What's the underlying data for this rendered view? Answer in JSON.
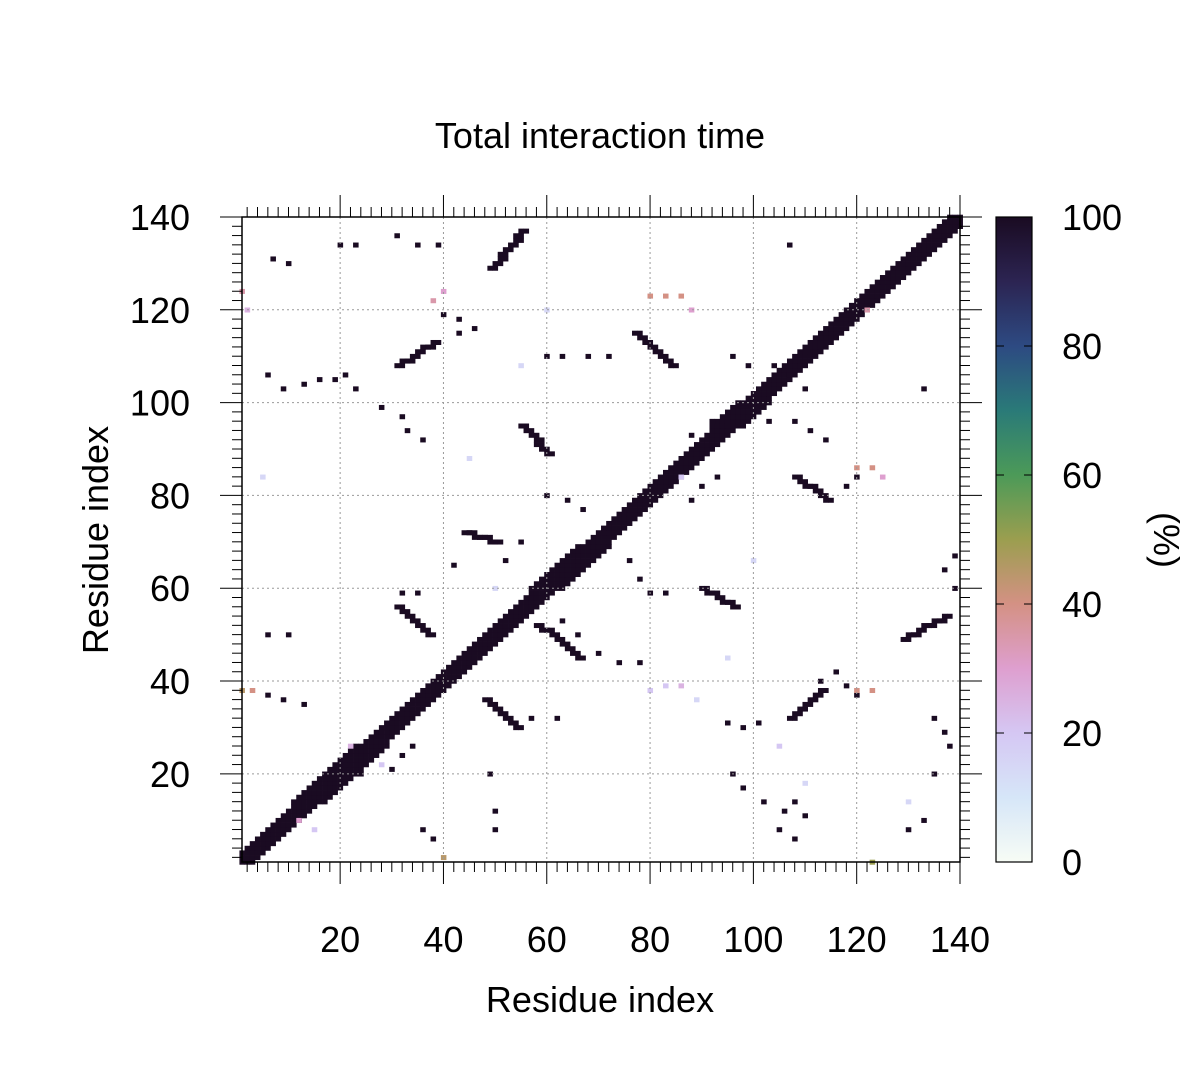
{
  "chart_data": {
    "type": "heatmap",
    "title": "Total interaction time",
    "xlabel": "Residue index",
    "ylabel": "Residue index",
    "xlim": [
      1,
      140
    ],
    "ylim": [
      1,
      140
    ],
    "x_ticks": [
      20,
      40,
      60,
      80,
      100,
      120,
      140
    ],
    "y_ticks": [
      20,
      40,
      60,
      80,
      100,
      120,
      140
    ],
    "grid": true,
    "colorbar": {
      "label": "(%)",
      "min": 0,
      "max": 100,
      "ticks": [
        0,
        20,
        40,
        60,
        80,
        100
      ],
      "colors": [
        "#f7fcf5",
        "#d6e6f8",
        "#d5c7f3",
        "#de9fcf",
        "#d49184",
        "#9b9e4f",
        "#4c9a58",
        "#2a7a78",
        "#2d4a82",
        "#2c2452",
        "#1a0b22"
      ]
    },
    "diagonal": {
      "from": 1,
      "to": 140,
      "value": 100
    },
    "contact_segments": [
      {
        "x1": 49,
        "y1": 129,
        "x2": 55,
        "y2": 137,
        "value": 100
      },
      {
        "x1": 31,
        "y1": 108,
        "x2": 38,
        "y2": 113,
        "value": 100
      },
      {
        "x1": 77,
        "y1": 115,
        "x2": 84,
        "y2": 108,
        "value": 100
      },
      {
        "x1": 55,
        "y1": 95,
        "x2": 60,
        "y2": 89,
        "value": 100
      },
      {
        "x1": 108,
        "y1": 84,
        "x2": 114,
        "y2": 79,
        "value": 100
      },
      {
        "x1": 90,
        "y1": 60,
        "x2": 96,
        "y2": 56,
        "value": 100
      },
      {
        "x1": 31,
        "y1": 56,
        "x2": 37,
        "y2": 50,
        "value": 100
      },
      {
        "x1": 48,
        "y1": 36,
        "x2": 54,
        "y2": 30,
        "value": 100
      },
      {
        "x1": 107,
        "y1": 32,
        "x2": 113,
        "y2": 38,
        "value": 100
      },
      {
        "x1": 129,
        "y1": 49,
        "x2": 137,
        "y2": 54,
        "value": 100
      },
      {
        "x1": 44,
        "y1": 72,
        "x2": 50,
        "y2": 70,
        "value": 100
      },
      {
        "x1": 58,
        "y1": 52,
        "x2": 62,
        "y2": 49,
        "value": 100
      },
      {
        "x1": 63,
        "y1": 48,
        "x2": 66,
        "y2": 45,
        "value": 100
      }
    ],
    "contact_dots": [
      {
        "x": 20,
        "y": 134,
        "value": 100
      },
      {
        "x": 23,
        "y": 134,
        "value": 100
      },
      {
        "x": 31,
        "y": 136,
        "value": 100
      },
      {
        "x": 35,
        "y": 134,
        "value": 100
      },
      {
        "x": 39,
        "y": 134,
        "value": 100
      },
      {
        "x": 7,
        "y": 131,
        "value": 100
      },
      {
        "x": 10,
        "y": 130,
        "value": 100
      },
      {
        "x": 107,
        "y": 134,
        "value": 100
      },
      {
        "x": 6,
        "y": 106,
        "value": 100
      },
      {
        "x": 9,
        "y": 103,
        "value": 100
      },
      {
        "x": 13,
        "y": 104,
        "value": 100
      },
      {
        "x": 16,
        "y": 105,
        "value": 100
      },
      {
        "x": 19,
        "y": 105,
        "value": 100
      },
      {
        "x": 21,
        "y": 106,
        "value": 100
      },
      {
        "x": 23,
        "y": 103,
        "value": 100
      },
      {
        "x": 40,
        "y": 119,
        "value": 100
      },
      {
        "x": 43,
        "y": 118,
        "value": 100
      },
      {
        "x": 46,
        "y": 116,
        "value": 100
      },
      {
        "x": 43,
        "y": 115,
        "value": 100
      },
      {
        "x": 60,
        "y": 110,
        "value": 100
      },
      {
        "x": 63,
        "y": 110,
        "value": 100
      },
      {
        "x": 68,
        "y": 110,
        "value": 100
      },
      {
        "x": 72,
        "y": 110,
        "value": 100
      },
      {
        "x": 96,
        "y": 110,
        "value": 100
      },
      {
        "x": 99,
        "y": 108,
        "value": 100
      },
      {
        "x": 104,
        "y": 108,
        "value": 100
      },
      {
        "x": 107,
        "y": 106,
        "value": 100
      },
      {
        "x": 110,
        "y": 103,
        "value": 100
      },
      {
        "x": 28,
        "y": 99,
        "value": 100
      },
      {
        "x": 32,
        "y": 97,
        "value": 100
      },
      {
        "x": 33,
        "y": 94,
        "value": 100
      },
      {
        "x": 36,
        "y": 92,
        "value": 100
      },
      {
        "x": 60,
        "y": 80,
        "value": 100
      },
      {
        "x": 64,
        "y": 79,
        "value": 100
      },
      {
        "x": 67,
        "y": 77,
        "value": 100
      },
      {
        "x": 42,
        "y": 65,
        "value": 100
      },
      {
        "x": 55,
        "y": 70,
        "value": 100
      },
      {
        "x": 52,
        "y": 66,
        "value": 100
      },
      {
        "x": 32,
        "y": 59,
        "value": 100
      },
      {
        "x": 35,
        "y": 59,
        "value": 100
      },
      {
        "x": 80,
        "y": 59,
        "value": 100
      },
      {
        "x": 83,
        "y": 59,
        "value": 100
      },
      {
        "x": 63,
        "y": 53,
        "value": 100
      },
      {
        "x": 66,
        "y": 50,
        "value": 100
      },
      {
        "x": 70,
        "y": 46,
        "value": 100
      },
      {
        "x": 74,
        "y": 44,
        "value": 100
      },
      {
        "x": 78,
        "y": 44,
        "value": 100
      },
      {
        "x": 6,
        "y": 50,
        "value": 100
      },
      {
        "x": 10,
        "y": 50,
        "value": 100
      },
      {
        "x": 6,
        "y": 37,
        "value": 100
      },
      {
        "x": 9,
        "y": 36,
        "value": 100
      },
      {
        "x": 13,
        "y": 35,
        "value": 100
      },
      {
        "x": 57,
        "y": 32,
        "value": 100
      },
      {
        "x": 62,
        "y": 32,
        "value": 100
      },
      {
        "x": 95,
        "y": 31,
        "value": 100
      },
      {
        "x": 98,
        "y": 30,
        "value": 100
      },
      {
        "x": 101,
        "y": 31,
        "value": 100
      },
      {
        "x": 113,
        "y": 40,
        "value": 100
      },
      {
        "x": 116,
        "y": 42,
        "value": 100
      },
      {
        "x": 118,
        "y": 39,
        "value": 100
      },
      {
        "x": 120,
        "y": 37,
        "value": 100
      },
      {
        "x": 96,
        "y": 20,
        "value": 100
      },
      {
        "x": 98,
        "y": 17,
        "value": 100
      },
      {
        "x": 102,
        "y": 14,
        "value": 100
      },
      {
        "x": 106,
        "y": 12,
        "value": 100
      },
      {
        "x": 108,
        "y": 14,
        "value": 100
      },
      {
        "x": 110,
        "y": 11,
        "value": 100
      },
      {
        "x": 105,
        "y": 8,
        "value": 100
      },
      {
        "x": 108,
        "y": 6,
        "value": 100
      },
      {
        "x": 50,
        "y": 12,
        "value": 100
      },
      {
        "x": 50,
        "y": 8,
        "value": 100
      },
      {
        "x": 38,
        "y": 6,
        "value": 100
      },
      {
        "x": 36,
        "y": 8,
        "value": 100
      },
      {
        "x": 24,
        "y": 20,
        "value": 100
      },
      {
        "x": 30,
        "y": 21,
        "value": 100
      },
      {
        "x": 32,
        "y": 24,
        "value": 100
      },
      {
        "x": 34,
        "y": 26,
        "value": 100
      },
      {
        "x": 49,
        "y": 20,
        "value": 100
      },
      {
        "x": 135,
        "y": 20,
        "value": 100
      },
      {
        "x": 133,
        "y": 10,
        "value": 100
      },
      {
        "x": 130,
        "y": 8,
        "value": 100
      },
      {
        "x": 138,
        "y": 26,
        "value": 100
      },
      {
        "x": 137,
        "y": 29,
        "value": 100
      },
      {
        "x": 135,
        "y": 32,
        "value": 100
      },
      {
        "x": 139,
        "y": 60,
        "value": 100
      },
      {
        "x": 137,
        "y": 64,
        "value": 100
      },
      {
        "x": 139,
        "y": 67,
        "value": 100
      },
      {
        "x": 133,
        "y": 103,
        "value": 100
      },
      {
        "x": 78,
        "y": 62,
        "value": 100
      },
      {
        "x": 76,
        "y": 66,
        "value": 100
      },
      {
        "x": 88,
        "y": 93,
        "value": 100
      },
      {
        "x": 92,
        "y": 96,
        "value": 100
      },
      {
        "x": 103,
        "y": 96,
        "value": 100
      },
      {
        "x": 108,
        "y": 96,
        "value": 100
      },
      {
        "x": 111,
        "y": 94,
        "value": 100
      },
      {
        "x": 114,
        "y": 92,
        "value": 100
      },
      {
        "x": 118,
        "y": 82,
        "value": 100
      },
      {
        "x": 120,
        "y": 84,
        "value": 100
      },
      {
        "x": 88,
        "y": 79,
        "value": 100
      },
      {
        "x": 90,
        "y": 82,
        "value": 100
      },
      {
        "x": 93,
        "y": 84,
        "value": 100
      }
    ],
    "light_dots": [
      {
        "x": 1,
        "y": 124,
        "value": 35
      },
      {
        "x": 2,
        "y": 120,
        "value": 25
      },
      {
        "x": 38,
        "y": 122,
        "value": 35
      },
      {
        "x": 40,
        "y": 124,
        "value": 30
      },
      {
        "x": 80,
        "y": 123,
        "value": 40
      },
      {
        "x": 83,
        "y": 123,
        "value": 40
      },
      {
        "x": 86,
        "y": 123,
        "value": 40
      },
      {
        "x": 88,
        "y": 120,
        "value": 30
      },
      {
        "x": 122,
        "y": 120,
        "value": 35
      },
      {
        "x": 120,
        "y": 86,
        "value": 40
      },
      {
        "x": 123,
        "y": 86,
        "value": 40
      },
      {
        "x": 125,
        "y": 84,
        "value": 30
      },
      {
        "x": 1,
        "y": 38,
        "value": 45
      },
      {
        "x": 3,
        "y": 38,
        "value": 40
      },
      {
        "x": 40,
        "y": 2,
        "value": 45
      },
      {
        "x": 123,
        "y": 1,
        "value": 50
      },
      {
        "x": 80,
        "y": 38,
        "value": 20
      },
      {
        "x": 83,
        "y": 39,
        "value": 20
      },
      {
        "x": 86,
        "y": 39,
        "value": 25
      },
      {
        "x": 89,
        "y": 36,
        "value": 15
      },
      {
        "x": 120,
        "y": 38,
        "value": 40
      },
      {
        "x": 123,
        "y": 38,
        "value": 40
      },
      {
        "x": 5,
        "y": 84,
        "value": 15
      },
      {
        "x": 86,
        "y": 84,
        "value": 20
      },
      {
        "x": 22,
        "y": 26,
        "value": 25
      },
      {
        "x": 28,
        "y": 22,
        "value": 20
      },
      {
        "x": 45,
        "y": 88,
        "value": 15
      },
      {
        "x": 55,
        "y": 108,
        "value": 15
      },
      {
        "x": 50,
        "y": 60,
        "value": 15
      },
      {
        "x": 60,
        "y": 120,
        "value": 15
      },
      {
        "x": 100,
        "y": 66,
        "value": 15
      },
      {
        "x": 95,
        "y": 45,
        "value": 15
      },
      {
        "x": 105,
        "y": 26,
        "value": 20
      },
      {
        "x": 110,
        "y": 18,
        "value": 15
      },
      {
        "x": 130,
        "y": 14,
        "value": 15
      },
      {
        "x": 12,
        "y": 10,
        "value": 30
      },
      {
        "x": 15,
        "y": 8,
        "value": 20
      }
    ]
  }
}
